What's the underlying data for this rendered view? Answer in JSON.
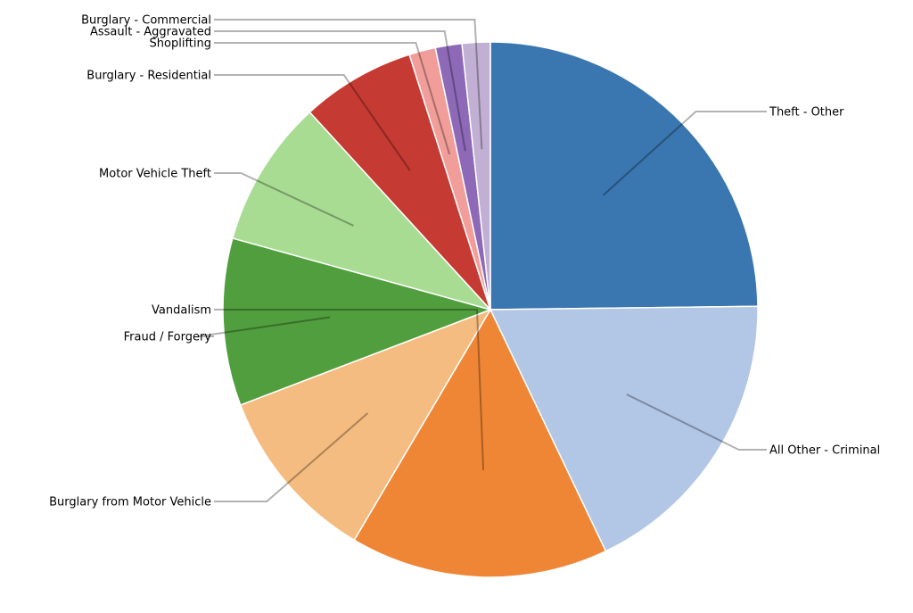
{
  "chart_data": {
    "type": "pie",
    "title": "",
    "slices": [
      {
        "label": "Theft - Other",
        "value": 24.8,
        "color": "#3a76af"
      },
      {
        "label": "All Other - Criminal",
        "value": 18.1,
        "color": "#b2c6e5"
      },
      {
        "label": "Vandalism",
        "value": 15.6,
        "color": "#ef8636"
      },
      {
        "label": "Burglary from Motor Vehicle",
        "value": 10.7,
        "color": "#f4bc80"
      },
      {
        "label": "Fraud / Forgery",
        "value": 10.1,
        "color": "#519e3e"
      },
      {
        "label": "Motor Vehicle Theft",
        "value": 8.9,
        "color": "#a8dc93"
      },
      {
        "label": "Burglary - Residential",
        "value": 6.9,
        "color": "#c53a32"
      },
      {
        "label": "Shoplifting",
        "value": 1.6,
        "color": "#f19d99"
      },
      {
        "label": "Assault - Aggravated",
        "value": 1.6,
        "color": "#8d69b8"
      },
      {
        "label": "Burglary - Commercial",
        "value": 1.7,
        "color": "#c2b0d4"
      }
    ]
  }
}
